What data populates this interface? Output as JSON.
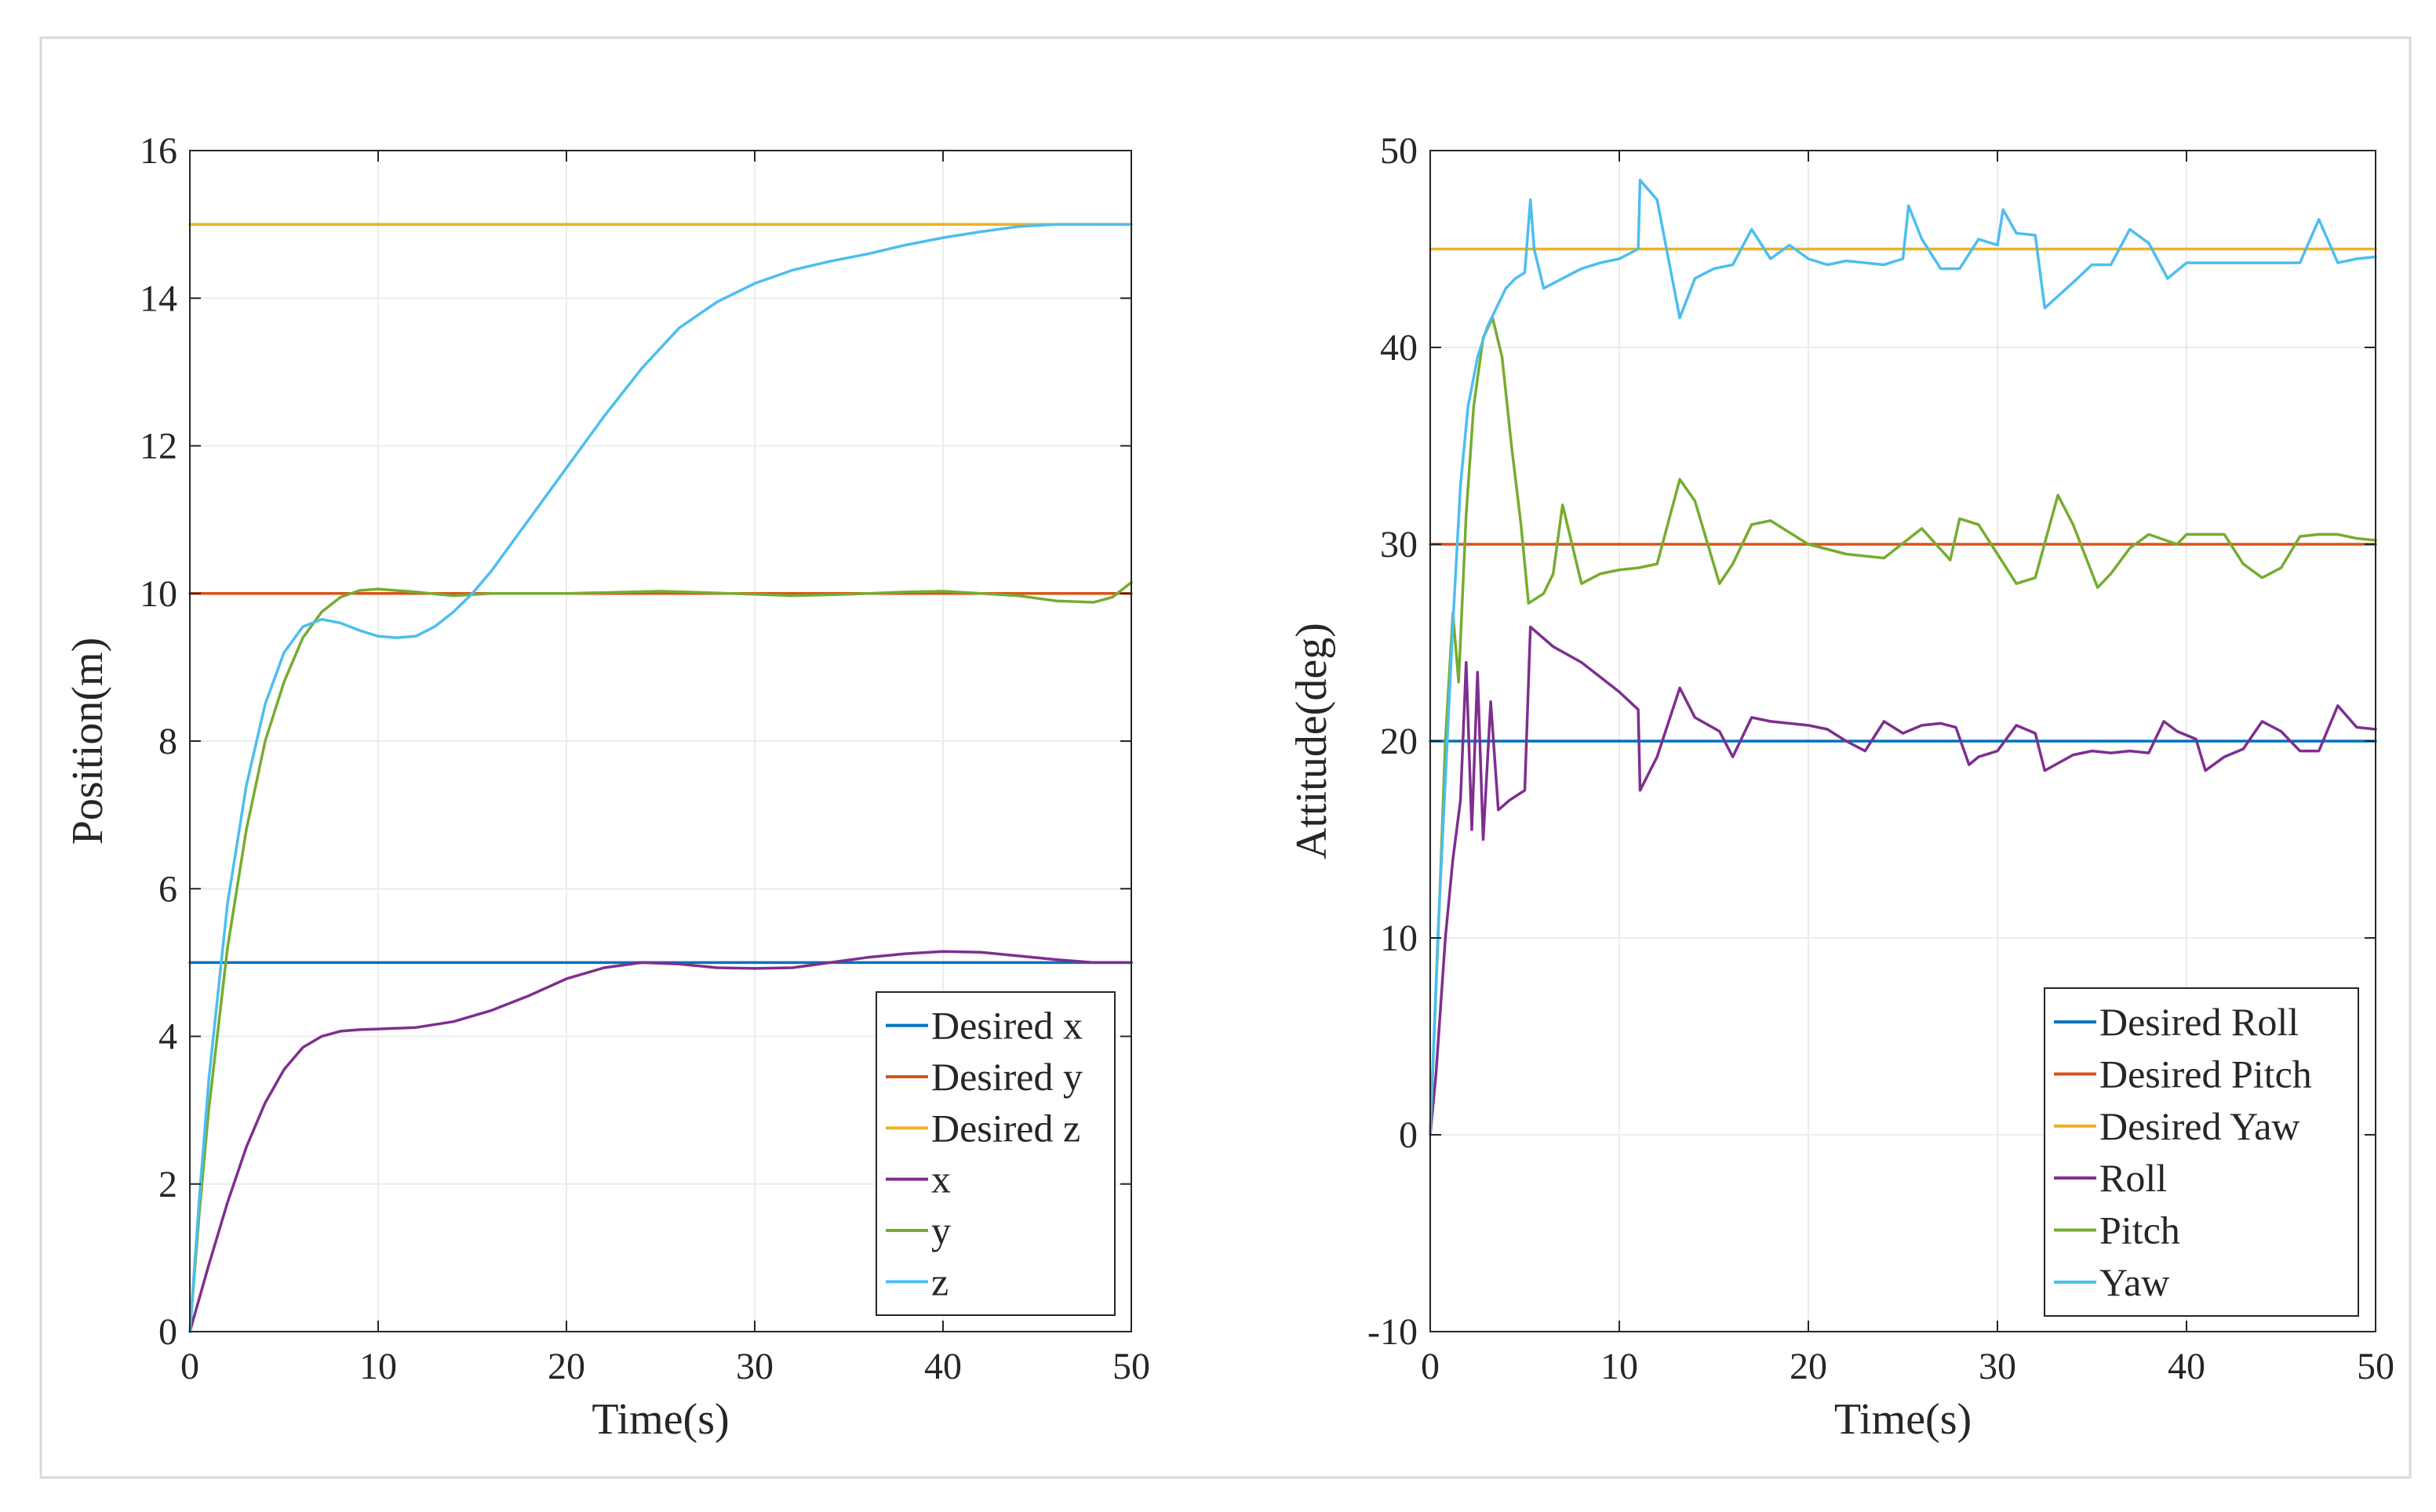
{
  "chart_data": [
    {
      "type": "line",
      "xlabel": "Time(s)",
      "ylabel": "Position(m)",
      "xlim": [
        0,
        50
      ],
      "ylim": [
        0,
        16
      ],
      "xticks": [
        "0",
        "10",
        "20",
        "30",
        "40",
        "50"
      ],
      "xtick_values": [
        0,
        10,
        20,
        30,
        40,
        50
      ],
      "yticks": [
        "0",
        "2",
        "4",
        "6",
        "8",
        "10",
        "12",
        "14",
        "16"
      ],
      "ytick_values": [
        0,
        2,
        4,
        6,
        8,
        10,
        12,
        14,
        16
      ],
      "grid": true,
      "legend_position": "bottom-right",
      "series": [
        {
          "name": "Desired x",
          "color": "#0072BD",
          "x": [
            0,
            50
          ],
          "y": [
            5,
            5
          ]
        },
        {
          "name": "Desired y",
          "color": "#D95319",
          "x": [
            0,
            50
          ],
          "y": [
            10,
            10
          ]
        },
        {
          "name": "Desired z",
          "color": "#EDB120",
          "x": [
            0,
            50
          ],
          "y": [
            15,
            15
          ]
        },
        {
          "name": "x",
          "color": "#7E2F8E",
          "x": [
            0,
            1,
            2,
            3,
            4,
            5,
            6,
            7,
            8,
            9,
            10,
            12,
            14,
            16,
            18,
            20,
            22,
            24,
            26,
            28,
            30,
            32,
            34,
            36,
            38,
            40,
            42,
            44,
            46,
            48,
            50
          ],
          "y": [
            0,
            0.9,
            1.75,
            2.5,
            3.1,
            3.55,
            3.85,
            4.0,
            4.07,
            4.09,
            4.1,
            4.12,
            4.2,
            4.35,
            4.55,
            4.78,
            4.93,
            5.0,
            4.98,
            4.93,
            4.92,
            4.93,
            5.0,
            5.07,
            5.12,
            5.15,
            5.14,
            5.09,
            5.04,
            5.0,
            5.0
          ]
        },
        {
          "name": "y",
          "color": "#77AC30",
          "x": [
            0,
            0.5,
            1,
            2,
            3,
            4,
            5,
            6,
            7,
            8,
            9,
            10,
            12,
            14,
            16,
            20,
            25,
            30,
            32,
            35,
            38,
            40,
            42,
            44,
            46,
            48,
            49,
            50
          ],
          "y": [
            0,
            1.6,
            3.0,
            5.2,
            6.8,
            8.0,
            8.8,
            9.4,
            9.75,
            9.95,
            10.04,
            10.06,
            10.02,
            9.97,
            10.0,
            10.0,
            10.03,
            9.99,
            9.97,
            9.99,
            10.02,
            10.03,
            10.0,
            9.97,
            9.9,
            9.88,
            9.95,
            10.15
          ]
        },
        {
          "name": "z",
          "color": "#4DBEEE",
          "x": [
            0,
            0.5,
            1,
            2,
            3,
            4,
            5,
            6,
            7,
            8,
            9,
            10,
            11,
            12,
            13,
            14,
            15,
            16,
            18,
            20,
            22,
            24,
            26,
            28,
            30,
            32,
            34,
            36,
            38,
            40,
            42,
            44,
            46,
            48,
            50
          ],
          "y": [
            0,
            1.8,
            3.4,
            5.8,
            7.4,
            8.5,
            9.2,
            9.55,
            9.65,
            9.6,
            9.5,
            9.42,
            9.4,
            9.42,
            9.55,
            9.75,
            10.0,
            10.3,
            11.0,
            11.7,
            12.4,
            13.05,
            13.6,
            13.95,
            14.2,
            14.38,
            14.5,
            14.6,
            14.72,
            14.82,
            14.9,
            14.97,
            15.0,
            15.0,
            15.0
          ]
        }
      ]
    },
    {
      "type": "line",
      "xlabel": "Time(s)",
      "ylabel": "Attitude(deg)",
      "xlim": [
        0,
        50
      ],
      "ylim": [
        -10,
        50
      ],
      "xticks": [
        "0",
        "10",
        "20",
        "30",
        "40",
        "50"
      ],
      "xtick_values": [
        0,
        10,
        20,
        30,
        40,
        50
      ],
      "yticks": [
        "-10",
        "0",
        "10",
        "20",
        "30",
        "40",
        "50"
      ],
      "ytick_values": [
        -10,
        0,
        10,
        20,
        30,
        40,
        50
      ],
      "grid": true,
      "legend_position": "bottom-right",
      "series": [
        {
          "name": "Desired Roll",
          "color": "#0072BD",
          "x": [
            0,
            50
          ],
          "y": [
            20,
            20
          ]
        },
        {
          "name": "Desired Pitch",
          "color": "#D95319",
          "x": [
            0,
            50
          ],
          "y": [
            30,
            30
          ]
        },
        {
          "name": "Desired Yaw",
          "color": "#EDB120",
          "x": [
            0,
            50
          ],
          "y": [
            45,
            45
          ]
        },
        {
          "name": "Roll",
          "color": "#7E2F8E",
          "x": [
            0,
            0.3,
            0.8,
            1.2,
            1.6,
            1.9,
            2.2,
            2.5,
            2.8,
            3.2,
            3.6,
            4.2,
            5.0,
            5.3,
            6.5,
            8,
            10,
            11,
            11.1,
            12,
            13.2,
            14,
            15.3,
            16,
            17,
            18,
            19,
            20,
            21,
            22,
            23,
            24,
            25,
            26,
            27,
            27.8,
            28.5,
            29,
            30,
            31,
            32,
            32.5,
            34,
            35,
            36,
            37,
            38,
            38.8,
            39.5,
            40.5,
            41,
            42,
            43,
            44,
            45,
            46,
            47,
            48,
            49,
            50
          ],
          "y": [
            0,
            3.0,
            10.0,
            14.0,
            17.0,
            24.0,
            15.5,
            23.5,
            15.0,
            22.0,
            16.5,
            17.0,
            17.5,
            25.8,
            24.8,
            24.0,
            22.5,
            21.6,
            17.5,
            19.2,
            22.7,
            21.2,
            20.5,
            19.2,
            21.2,
            21.0,
            20.9,
            20.8,
            20.6,
            20.0,
            19.5,
            21.0,
            20.4,
            20.8,
            20.9,
            20.7,
            18.8,
            19.2,
            19.5,
            20.8,
            20.4,
            18.5,
            19.3,
            19.5,
            19.4,
            19.5,
            19.4,
            21.0,
            20.5,
            20.1,
            18.5,
            19.2,
            19.6,
            21.0,
            20.5,
            19.5,
            19.5,
            21.8,
            20.7,
            20.6
          ]
        },
        {
          "name": "Pitch",
          "color": "#77AC30",
          "x": [
            0,
            0.5,
            0.8,
            1.2,
            1.5,
            1.9,
            2.3,
            2.8,
            3.3,
            3.8,
            4.3,
            4.8,
            5.2,
            6,
            6.5,
            7,
            8,
            9,
            10,
            11,
            12,
            13.2,
            14,
            15.3,
            16,
            17,
            18,
            20,
            22,
            24,
            26,
            27.5,
            28,
            29,
            30,
            31,
            32,
            33.2,
            34,
            35.3,
            36,
            37,
            38,
            39.5,
            40,
            41,
            42,
            43,
            44,
            45,
            46,
            47,
            48,
            49,
            50
          ],
          "y": [
            0,
            12.0,
            20.0,
            26.5,
            23.0,
            31.5,
            37.0,
            40.5,
            41.5,
            39.5,
            35.0,
            31.0,
            27.0,
            27.5,
            28.5,
            32.0,
            28.0,
            28.5,
            28.7,
            28.8,
            29.0,
            33.3,
            32.2,
            28.0,
            29.0,
            31.0,
            31.2,
            30.0,
            29.5,
            29.3,
            30.8,
            29.2,
            31.3,
            31.0,
            29.5,
            28.0,
            28.3,
            32.5,
            31.0,
            27.8,
            28.5,
            29.8,
            30.5,
            30.0,
            30.5,
            30.5,
            30.5,
            29.0,
            28.3,
            28.8,
            30.4,
            30.5,
            30.5,
            30.3,
            30.2
          ]
        },
        {
          "name": "Yaw",
          "color": "#4DBEEE",
          "x": [
            0,
            0.4,
            0.8,
            1.2,
            1.6,
            2.0,
            2.5,
            3.0,
            3.5,
            4.0,
            4.5,
            5.0,
            5.3,
            5.5,
            6,
            7,
            8,
            9,
            10,
            11,
            11.1,
            12,
            13.2,
            14,
            15,
            16,
            17,
            18,
            19,
            20,
            21,
            22,
            23,
            24,
            25,
            25.3,
            26,
            27,
            28,
            29,
            30,
            30.3,
            31,
            32,
            32.5,
            34,
            35,
            36,
            37,
            38,
            39,
            40,
            41,
            42,
            43,
            44,
            45,
            46,
            47,
            48,
            49,
            50
          ],
          "y": [
            0,
            10.0,
            18.0,
            26.0,
            33.0,
            37.0,
            39.5,
            41.0,
            42.0,
            43.0,
            43.5,
            43.8,
            47.5,
            45.0,
            43.0,
            43.5,
            44.0,
            44.3,
            44.5,
            45.0,
            48.5,
            47.5,
            41.5,
            43.5,
            44.0,
            44.2,
            46.0,
            44.5,
            45.2,
            44.5,
            44.2,
            44.4,
            44.3,
            44.2,
            44.5,
            47.2,
            45.5,
            44.0,
            44.0,
            45.5,
            45.2,
            47.0,
            45.8,
            45.7,
            42.0,
            43.3,
            44.2,
            44.2,
            46.0,
            45.3,
            43.5,
            44.3,
            44.3,
            44.3,
            44.3,
            44.3,
            44.3,
            44.3,
            46.5,
            44.3,
            44.5,
            44.6
          ]
        }
      ]
    }
  ]
}
